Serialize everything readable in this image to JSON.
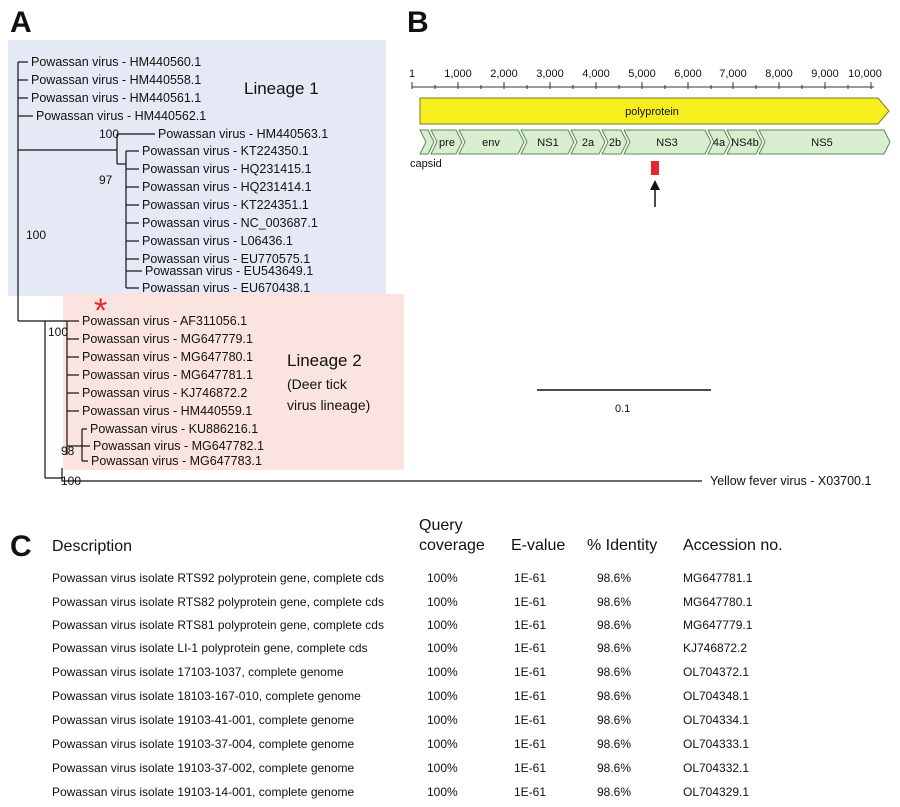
{
  "panels": {
    "a": "A",
    "b": "B",
    "c": "C"
  },
  "tree": {
    "lineage1": "Lineage 1",
    "lineage2_title": "Lineage 2",
    "lineage2_sub1": "(Deer tick",
    "lineage2_sub2": "virus lineage)",
    "asterisk": "*",
    "scale_label": "0.1",
    "colors": {
      "lineage1_bg": "#e4e9f5",
      "lineage2_bg": "#fbe4df",
      "asterisk": "#e8262a"
    },
    "taxa": [
      "Powassan virus - HM440560.1",
      "Powassan virus - HM440558.1",
      "Powassan virus - HM440561.1",
      "Powassan virus - HM440562.1",
      "Powassan virus - HM440563.1",
      "Powassan virus - KT224350.1",
      "Powassan virus - HQ231415.1",
      "Powassan virus - HQ231414.1",
      "Powassan virus - KT224351.1",
      "Powassan virus - NC_003687.1",
      "Powassan virus - L06436.1",
      "Powassan virus - EU770575.1",
      "Powassan virus - EU543649.1",
      "Powassan virus - EU670438.1",
      "Powassan virus - AF311056.1",
      "Powassan virus - MG647779.1",
      "Powassan virus - MG647780.1",
      "Powassan virus - MG647781.1",
      "Powassan virus - KJ746872.2",
      "Powassan virus - HM440559.1",
      "Powassan virus - KU886216.1",
      "Powassan virus - MG647782.1",
      "Powassan virus - MG647783.1",
      "Yellow fever virus - X03700.1"
    ],
    "support": [
      "100",
      "97",
      "100",
      "100",
      "98",
      "100"
    ]
  },
  "genome": {
    "axis_ticks": [
      "1",
      "1,000",
      "2,000",
      "3,000",
      "4,000",
      "5,000",
      "6,000",
      "7,000",
      "8,000",
      "9,000",
      "10,000"
    ],
    "polyprotein_label": "polyprotein",
    "capsid_label": "capsid",
    "genes": [
      "pre",
      "env",
      "NS1",
      "2a",
      "2b",
      "NS3",
      "4a",
      "NS4b",
      "NS5"
    ],
    "colors": {
      "polyprotein": "#f7ee1d",
      "gene": "#d7efcf",
      "marker": "#e8262a"
    }
  },
  "table": {
    "headers": {
      "description": "Description",
      "query1": "Query",
      "query2": "coverage",
      "evalue": "E-value",
      "identity": "% Identity",
      "accession": "Accession no."
    },
    "rows": [
      [
        "Powassan virus isolate RTS92 polyprotein gene, complete cds",
        "100%",
        "1E-61",
        "98.6%",
        "MG647781.1"
      ],
      [
        "Powassan virus isolate RTS82 polyprotein gene, complete cds",
        "100%",
        "1E-61",
        "98.6%",
        "MG647780.1"
      ],
      [
        "Powassan virus isolate RTS81 polyprotein gene, complete cds",
        "100%",
        "1E-61",
        "98.6%",
        "MG647779.1"
      ],
      [
        "Powassan virus isolate LI-1 polyprotein gene, complete cds",
        "100%",
        "1E-61",
        "98.6%",
        "KJ746872.2"
      ],
      [
        "Powassan virus isolate 17103-1037, complete genome",
        "100%",
        "1E-61",
        "98.6%",
        "OL704372.1"
      ],
      [
        "Powassan virus isolate 18103-167-010, complete genome",
        "100%",
        "1E-61",
        "98.6%",
        "OL704348.1"
      ],
      [
        "Powassan virus isolate 19103-41-001, complete genome",
        "100%",
        "1E-61",
        "98.6%",
        "OL704334.1"
      ],
      [
        "Powassan virus isolate 19103-37-004, complete genome",
        "100%",
        "1E-61",
        "98.6%",
        "OL704333.1"
      ],
      [
        "Powassan virus isolate 19103-37-002, complete genome",
        "100%",
        "1E-61",
        "98.6%",
        "OL704332.1"
      ],
      [
        "Powassan virus isolate 19103-14-001, complete genome",
        "100%",
        "1E-61",
        "98.6%",
        "OL704329.1"
      ]
    ]
  }
}
